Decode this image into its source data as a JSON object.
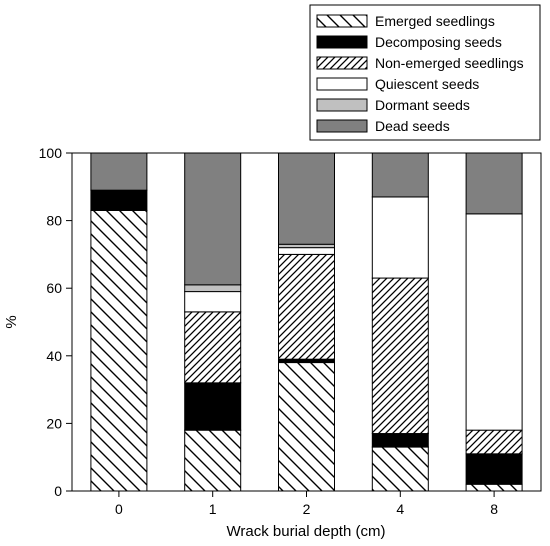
{
  "chart_data": {
    "type": "bar",
    "stacked": true,
    "categories": [
      "0",
      "1",
      "2",
      "4",
      "8"
    ],
    "xlabel": "Wrack burial depth (cm)",
    "ylabel": "%",
    "ylim": [
      0,
      100
    ],
    "yticks": [
      0,
      20,
      40,
      60,
      80,
      100
    ],
    "grid": false,
    "legend_position": "top-right",
    "series": [
      {
        "name": "Emerged seedlings",
        "fill": "hatch-back",
        "values": [
          83,
          18,
          38,
          13,
          2
        ]
      },
      {
        "name": "Decomposing seeds",
        "color": "#000000",
        "values": [
          6,
          14,
          1,
          4,
          9
        ]
      },
      {
        "name": "Non-emerged seedlings",
        "fill": "hatch-forward",
        "values": [
          0,
          21,
          31,
          46,
          7
        ]
      },
      {
        "name": "Quiescent seeds",
        "color": "#ffffff",
        "values": [
          0,
          6,
          2,
          24,
          64
        ]
      },
      {
        "name": "Dormant seeds",
        "color": "#c0c0c0",
        "values": [
          0,
          2,
          1,
          0,
          0
        ]
      },
      {
        "name": "Dead seeds",
        "color": "#808080",
        "values": [
          11,
          39,
          27,
          13,
          18
        ]
      }
    ]
  }
}
